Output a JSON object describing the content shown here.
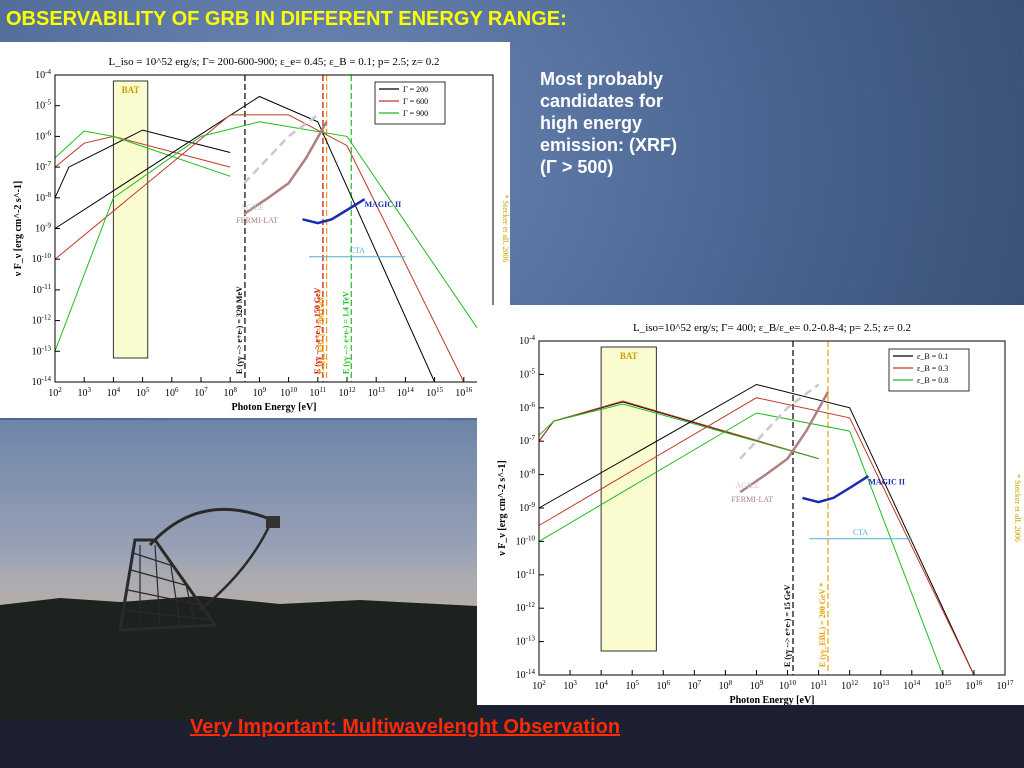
{
  "slide": {
    "title": "OBSERVABILITY OF GRB IN DIFFERENT ENERGY RANGE:",
    "side_note": [
      "Most probably",
      "candidates for",
      "high energy",
      "emission: (XRF)",
      "(Γ > 500)"
    ],
    "bottom_note": "Very Important: Multiwavelenght Observation",
    "colors": {
      "title": "#ffff00",
      "side_note": "#ffffff",
      "bottom_note": "#ff2a00"
    }
  },
  "chart_data": [
    {
      "type": "line",
      "title": "L_iso = 10^52 erg/s; Γ= 200-600-900; ε_e= 0.45; ε_B = 0.1; p= 2.5; z= 0.2",
      "xlabel": "Photon Energy [eV]",
      "ylabel": "ν F_ν [erg cm^-2 s^-1]",
      "x_scale": "log",
      "y_scale": "log",
      "xlim": [
        100,
        1e+17
      ],
      "ylim": [
        1e-14,
        0.0001
      ],
      "x_ticks": [
        "10^2",
        "10^3",
        "10^4",
        "10^5",
        "10^6",
        "10^7",
        "10^8",
        "10^9",
        "10^10",
        "10^11",
        "10^12",
        "10^13",
        "10^14",
        "10^15",
        "10^16",
        "10^17"
      ],
      "y_ticks": [
        "10^-4",
        "10^-5",
        "10^-6",
        "10^-7",
        "10^-8",
        "10^-9",
        "10^-10",
        "10^-11",
        "10^-12",
        "10^-13",
        "10^-14"
      ],
      "legend_position": "top-right",
      "series": [
        {
          "name": "Γ = 200",
          "color": "#000000",
          "points": [
            [
              100,
              1e-08
            ],
            [
              300,
              1e-07
            ],
            [
              100000.0,
              1.6e-06
            ],
            [
              100000000.0,
              3e-07
            ]
          ]
        },
        {
          "name": "Γ = 600",
          "color": "#c0392b",
          "points": [
            [
              100,
              1e-07
            ],
            [
              1000.0,
              6e-07
            ],
            [
              10000.0,
              1e-06
            ],
            [
              100000000.0,
              1e-07
            ]
          ]
        },
        {
          "name": "Γ = 900",
          "color": "#22bb22",
          "points": [
            [
              100,
              2e-07
            ],
            [
              1000.0,
              1.5e-06
            ],
            [
              10000.0,
              1e-06
            ],
            [
              100000000.0,
              5e-08
            ]
          ]
        },
        {
          "name": "Γ = 200 IC",
          "color": "#000000",
          "points": [
            [
              100,
              1e-09
            ],
            [
              1000000000.0,
              2e-05
            ],
            [
              100000000000.0,
              3e-06
            ],
            [
              1000000000000000.0,
              1e-14
            ]
          ]
        },
        {
          "name": "Γ = 600 IC",
          "color": "#c0392b",
          "points": [
            [
              100,
              1e-10
            ],
            [
              100000000.0,
              5e-06
            ],
            [
              10000000000.0,
              5e-06
            ],
            [
              1000000000000.0,
              5e-07
            ],
            [
              1e+16,
              1e-14
            ]
          ]
        },
        {
          "name": "Γ = 900 IC",
          "color": "#22bb22",
          "points": [
            [
              100,
              1e-13
            ],
            [
              10000.0,
              1e-08
            ],
            [
              10000000.0,
              1e-06
            ],
            [
              1000000000.0,
              3e-06
            ],
            [
              1000000000000.0,
              1e-06
            ],
            [
              1e+17,
              1e-13
            ]
          ]
        }
      ],
      "instruments": [
        {
          "name": "BAT",
          "band": [
            10000.0,
            150000.0
          ]
        },
        {
          "name": "AGILE",
          "color": "#c9c9c9"
        },
        {
          "name": "FERMI-LAT",
          "color": "#b08080"
        },
        {
          "name": "MAGIC II",
          "color": "#1a2bb0"
        },
        {
          "name": "CTA",
          "color": "#4fb0d8"
        }
      ],
      "cutoffs": [
        {
          "label": "E (γγ --> e+e-) = 320 MeV",
          "x": 320000000.0,
          "color": "#000000"
        },
        {
          "label": "E (γγ --> e+e-) = 150 GeV",
          "x": 150000000000.0,
          "color": "#d00000"
        },
        {
          "label": "E (γγ_EBL) = 200 GeV *",
          "x": 200000000000.0,
          "color": "#e6a100"
        },
        {
          "label": "E (γγ --> e+e-) = 1.4 TeV",
          "x": 1400000000000.0,
          "color": "#22bb22"
        }
      ],
      "reference": "* Stecker et all. 2006"
    },
    {
      "type": "line",
      "title": "L_iso=10^52 erg/s; Γ= 400; ε_B/ε_e= 0.2-0.8-4; p= 2.5; z= 0.2",
      "xlabel": "Photon Energy [eV]",
      "ylabel": "ν F_ν [erg cm^-2 s^-1]",
      "x_scale": "log",
      "y_scale": "log",
      "xlim": [
        100,
        1e+17
      ],
      "ylim": [
        1e-14,
        0.0001
      ],
      "x_ticks": [
        "10^2",
        "10^3",
        "10^4",
        "10^5",
        "10^6",
        "10^7",
        "10^8",
        "10^9",
        "10^10",
        "10^11",
        "10^12",
        "10^13",
        "10^14",
        "10^15",
        "10^16",
        "10^17"
      ],
      "y_ticks": [
        "10^-4",
        "10^-5",
        "10^-6",
        "10^-7",
        "10^-8",
        "10^-9",
        "10^-10",
        "10^-11",
        "10^-12",
        "10^-13",
        "10^-14"
      ],
      "legend_position": "top-right",
      "series": [
        {
          "name": "ε_B = 0.1",
          "color": "#000000",
          "points": [
            [
              100,
              1e-07
            ],
            [
              300,
              4e-07
            ],
            [
              50000.0,
              1.5e-06
            ],
            [
              100000000000.0,
              3e-08
            ]
          ]
        },
        {
          "name": "ε_B = 0.3",
          "color": "#c0392b",
          "points": [
            [
              100,
              1e-07
            ],
            [
              300,
              4e-07
            ],
            [
              50000.0,
              1.6e-06
            ],
            [
              100000000000.0,
              3e-08
            ]
          ]
        },
        {
          "name": "ε_B = 0.8",
          "color": "#22bb22",
          "points": [
            [
              100,
              1.5e-07
            ],
            [
              300,
              4e-07
            ],
            [
              50000.0,
              1.3e-06
            ],
            [
              100000000000.0,
              3e-08
            ]
          ]
        },
        {
          "name": "ε_B = 0.1 IC",
          "color": "#000000",
          "points": [
            [
              100,
              1e-09
            ],
            [
              1000000000.0,
              5e-06
            ],
            [
              1000000000000.0,
              1e-06
            ],
            [
              1e+16,
              1e-14
            ]
          ]
        },
        {
          "name": "ε_B = 0.3 IC",
          "color": "#c0392b",
          "points": [
            [
              100,
              3e-10
            ],
            [
              1000000000.0,
              2e-06
            ],
            [
              1000000000000.0,
              5e-07
            ],
            [
              1e+16,
              1e-14
            ]
          ]
        },
        {
          "name": "ε_B = 0.8 IC",
          "color": "#22bb22",
          "points": [
            [
              100,
              1e-10
            ],
            [
              1000000000.0,
              7e-07
            ],
            [
              1000000000000.0,
              2e-07
            ],
            [
              1000000000000000.0,
              1e-14
            ]
          ]
        }
      ],
      "instruments": [
        {
          "name": "BAT",
          "band": [
            10000.0,
            600000.0
          ]
        },
        {
          "name": "AGILE",
          "color": "#c9c9c9"
        },
        {
          "name": "FERMI-LAT",
          "color": "#b08080"
        },
        {
          "name": "MAGIC II",
          "color": "#1a2bb0"
        },
        {
          "name": "CTA",
          "color": "#4fb0d8"
        }
      ],
      "cutoffs": [
        {
          "label": "E (γγ --> e+e-) = 15 GeV",
          "x": 15000000000.0,
          "color": "#000000"
        },
        {
          "label": "E (γγ_EBL) = 200 GeV *",
          "x": 200000000000.0,
          "color": "#e6a100"
        }
      ],
      "reference": "* Stecker et all. 2006"
    }
  ]
}
